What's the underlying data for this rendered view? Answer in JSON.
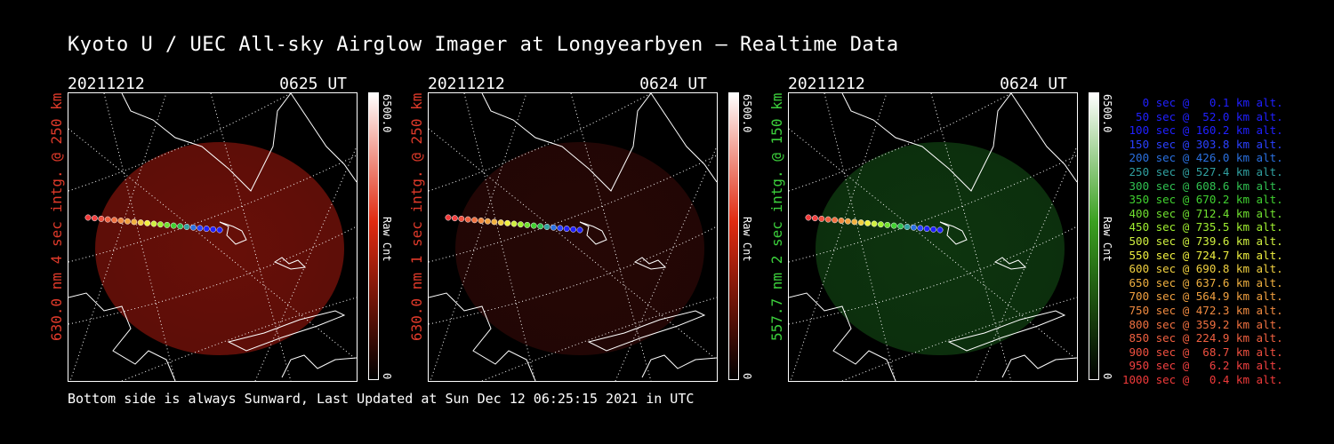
{
  "title": "Kyoto U / UEC All-sky Airglow Imager at Longyearbyen — Realtime Data",
  "footer": "Bottom side is always Sunward, Last Updated at Sun Dec 12 06:25:15 2021 in UTC",
  "panels": [
    {
      "date": "20211212",
      "time": "0625 UT",
      "side_label": "630.0 nm 4 sec intg. @ 250 km",
      "side_color": "#e03a2a",
      "cbar_max": "6500.0",
      "cbar_min": "0",
      "cbar_unit": "Raw Cnt",
      "glow_color": "#7a120a",
      "glow_opacity": "0.85",
      "bar_color": "#e02a10"
    },
    {
      "date": "20211212",
      "time": "0624 UT",
      "side_label": "630.0 nm 1 sec intg. @ 250 km",
      "side_color": "#e03a2a",
      "cbar_max": "6500.0",
      "cbar_min": "0",
      "cbar_unit": "Raw Cnt",
      "glow_color": "#2a0806",
      "glow_opacity": "0.9",
      "bar_color": "#e02a10"
    },
    {
      "date": "20211212",
      "time": "0624 UT",
      "side_label": "557.7 nm 2 sec intg. @ 150 km",
      "side_color": "#3cd03c",
      "cbar_max": "6500.0",
      "cbar_min": "0",
      "cbar_unit": "Raw Cnt",
      "glow_color": "#0f3a10",
      "glow_opacity": "0.9",
      "bar_color": "#3aa020"
    }
  ],
  "legend": [
    {
      "text": "   0 sec @   0.1 km alt.",
      "color": "#2020ff"
    },
    {
      "text": "  50 sec @  52.0 km alt.",
      "color": "#2020ff"
    },
    {
      "text": " 100 sec @ 160.2 km alt.",
      "color": "#2020ff"
    },
    {
      "text": " 150 sec @ 303.8 km alt.",
      "color": "#2a40ff"
    },
    {
      "text": " 200 sec @ 426.0 km alt.",
      "color": "#2a70e0"
    },
    {
      "text": " 250 sec @ 527.4 km alt.",
      "color": "#30a0a0"
    },
    {
      "text": " 300 sec @ 608.6 km alt.",
      "color": "#30c050"
    },
    {
      "text": " 350 sec @ 670.2 km alt.",
      "color": "#40d030"
    },
    {
      "text": " 400 sec @ 712.4 km alt.",
      "color": "#70e030"
    },
    {
      "text": " 450 sec @ 735.5 km alt.",
      "color": "#a0f030"
    },
    {
      "text": " 500 sec @ 739.6 km alt.",
      "color": "#d0f040"
    },
    {
      "text": " 550 sec @ 724.7 km alt.",
      "color": "#f0f040"
    },
    {
      "text": " 600 sec @ 690.8 km alt.",
      "color": "#f0d040"
    },
    {
      "text": " 650 sec @ 637.6 km alt.",
      "color": "#f0b040"
    },
    {
      "text": " 700 sec @ 564.9 km alt.",
      "color": "#f0a040"
    },
    {
      "text": " 750 sec @ 472.3 km alt.",
      "color": "#f08a40"
    },
    {
      "text": " 800 sec @ 359.2 km alt.",
      "color": "#f07040"
    },
    {
      "text": " 850 sec @ 224.9 km alt.",
      "color": "#f06040"
    },
    {
      "text": " 900 sec @  68.7 km alt.",
      "color": "#f05040"
    },
    {
      "text": " 950 sec @   6.2 km alt.",
      "color": "#f04040"
    },
    {
      "text": "1000 sec @   0.4 km alt.",
      "color": "#f03a3a"
    }
  ]
}
